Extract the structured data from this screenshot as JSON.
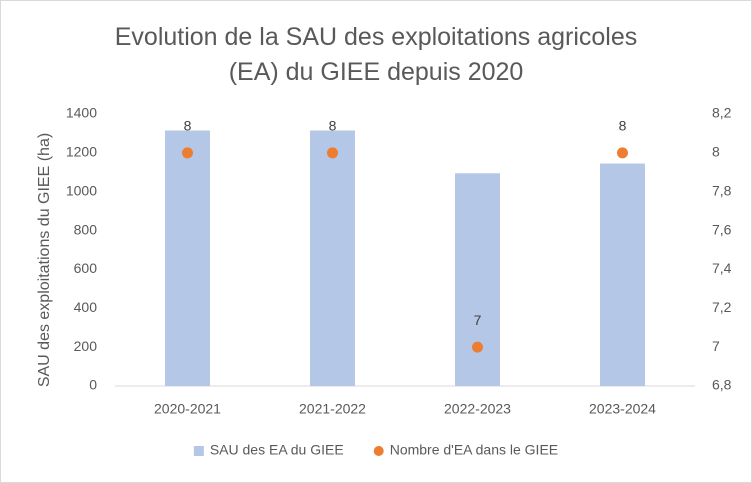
{
  "chart_data": {
    "type": "combo",
    "title": "Evolution de la SAU des exploitations agricoles (EA) du GIEE depuis 2020",
    "y_label": "SAU des exploitations du GIEE (ha)",
    "categories": [
      "2020-2021",
      "2021-2022",
      "2022-2023",
      "2023-2024"
    ],
    "series": [
      {
        "name": "SAU des EA du GIEE",
        "type": "bar",
        "color": "#b4c7e7",
        "values": [
          1315,
          1315,
          1095,
          1145
        ]
      },
      {
        "name": "Nombre d'EA dans le GIEE",
        "type": "scatter",
        "axis": "y2",
        "color": "#ed7d31",
        "values": [
          8,
          8,
          7,
          8
        ],
        "data_labels": true
      }
    ],
    "ylim": [
      0,
      1400
    ],
    "yticks": [
      0,
      200,
      400,
      600,
      800,
      1000,
      1200,
      1400
    ],
    "y2lim": [
      6.8,
      8.2
    ],
    "y2ticks": [
      {
        "value": 6.8,
        "label": "6,8"
      },
      7,
      {
        "value": 7.2,
        "label": "7,2"
      },
      {
        "value": 7.4,
        "label": "7,4"
      },
      {
        "value": 7.6,
        "label": "7,6"
      },
      {
        "value": 7.8,
        "label": "7,8"
      },
      8,
      {
        "value": 8.2,
        "label": "8,2"
      }
    ],
    "grid": false,
    "legend": "bottom"
  }
}
